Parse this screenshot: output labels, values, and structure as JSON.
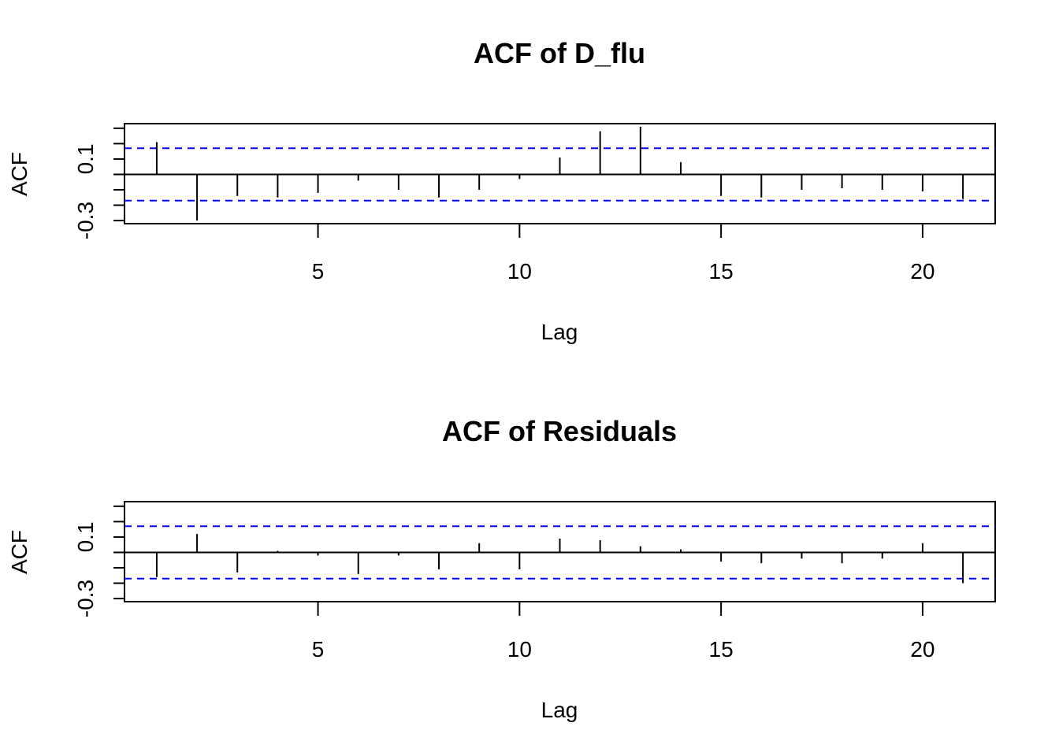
{
  "chart_data": [
    {
      "type": "bar",
      "title": "ACF of D_flu",
      "xlabel": "Lag",
      "ylabel": "ACF",
      "x": [
        1,
        2,
        3,
        4,
        5,
        6,
        7,
        8,
        9,
        10,
        11,
        12,
        13,
        14,
        15,
        16,
        17,
        18,
        19,
        20,
        21
      ],
      "values": [
        0.21,
        -0.3,
        -0.14,
        -0.15,
        -0.12,
        -0.04,
        -0.1,
        -0.15,
        -0.1,
        -0.03,
        0.11,
        0.28,
        0.31,
        0.08,
        -0.14,
        -0.15,
        -0.1,
        -0.09,
        -0.1,
        -0.11,
        -0.16
      ],
      "conf_limits": [
        0.17,
        -0.17
      ],
      "xlim": [
        0.2,
        21.8
      ],
      "ylim": [
        -0.32,
        0.33
      ],
      "xticks": [
        5,
        10,
        15,
        20
      ],
      "yticks": [
        -0.3,
        -0.2,
        -0.1,
        0.0,
        0.1,
        0.2,
        0.3
      ],
      "ytick_labels": [
        {
          "value": -0.3,
          "label": "-0.3"
        },
        {
          "value": 0.1,
          "label": "0.1"
        }
      ],
      "colors": {
        "bars": "#000000",
        "conf_limits": "#0000ff",
        "frame": "#000000"
      }
    },
    {
      "type": "bar",
      "title": "ACF of Residuals",
      "xlabel": "Lag",
      "ylabel": "ACF",
      "x": [
        1,
        2,
        3,
        4,
        5,
        6,
        7,
        8,
        9,
        10,
        11,
        12,
        13,
        14,
        15,
        16,
        17,
        18,
        19,
        20,
        21
      ],
      "values": [
        -0.16,
        0.12,
        -0.13,
        0.01,
        -0.02,
        -0.14,
        -0.02,
        -0.11,
        0.06,
        -0.11,
        0.09,
        0.08,
        0.04,
        0.02,
        -0.06,
        -0.07,
        -0.04,
        -0.07,
        -0.04,
        0.06,
        -0.2
      ],
      "conf_limits": [
        0.17,
        -0.17
      ],
      "xlim": [
        0.2,
        21.8
      ],
      "ylim": [
        -0.32,
        0.33
      ],
      "xticks": [
        5,
        10,
        15,
        20
      ],
      "yticks": [
        -0.3,
        -0.2,
        -0.1,
        0.0,
        0.1,
        0.2,
        0.3
      ],
      "ytick_labels": [
        {
          "value": -0.3,
          "label": "-0.3"
        },
        {
          "value": 0.1,
          "label": "0.1"
        }
      ],
      "colors": {
        "bars": "#000000",
        "conf_limits": "#0000ff",
        "frame": "#000000"
      }
    }
  ]
}
